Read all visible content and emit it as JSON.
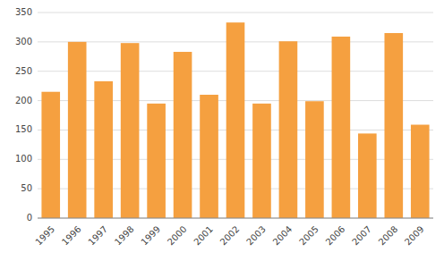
{
  "chart_data": {
    "type": "bar",
    "categories": [
      "1995",
      "1996",
      "1997",
      "1998",
      "1999",
      "2000",
      "2001",
      "2002",
      "2003",
      "2004",
      "2005",
      "2006",
      "2007",
      "2008",
      "2009"
    ],
    "values": [
      215,
      300,
      233,
      298,
      195,
      283,
      210,
      333,
      195,
      301,
      199,
      309,
      144,
      315,
      159
    ],
    "color": "#F5A040",
    "ylim": [
      0,
      350
    ],
    "yticks": [
      0,
      50,
      100,
      150,
      200,
      250,
      300,
      350
    ],
    "grid": true
  }
}
